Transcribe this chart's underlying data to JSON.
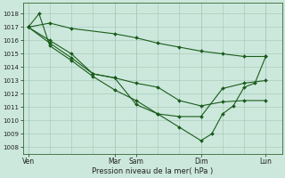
{
  "xlabel": "Pression niveau de la mer( hPa )",
  "background_color": "#cce8dc",
  "grid_color": "#aaccbb",
  "line_color": "#1a5c1a",
  "ylim": [
    1007.5,
    1018.8
  ],
  "yticks": [
    1008,
    1009,
    1010,
    1011,
    1012,
    1013,
    1014,
    1015,
    1016,
    1017,
    1018
  ],
  "xtick_labels": [
    "Ven",
    "Mar",
    "Sam",
    "Dim",
    "Lun"
  ],
  "xtick_positions": [
    0,
    8,
    10,
    16,
    22
  ],
  "xlim": [
    -0.5,
    23.5
  ],
  "line1_x": [
    0,
    2,
    4,
    8,
    10,
    12,
    14,
    16,
    18,
    20,
    22
  ],
  "line1_y": [
    1017.0,
    1017.3,
    1016.9,
    1016.5,
    1016.2,
    1015.8,
    1015.5,
    1015.2,
    1015.0,
    1014.8,
    1014.8
  ],
  "line2_x": [
    0,
    2,
    4,
    6,
    8,
    10,
    12,
    14,
    16,
    18,
    20,
    22
  ],
  "line2_y": [
    1017.0,
    1016.0,
    1015.0,
    1013.5,
    1013.2,
    1012.8,
    1012.5,
    1011.5,
    1011.1,
    1011.4,
    1011.5,
    1011.5
  ],
  "line3_x": [
    0,
    1,
    2,
    4,
    6,
    8,
    10,
    12,
    14,
    16,
    18,
    20,
    22
  ],
  "line3_y": [
    1017.0,
    1018.0,
    1015.6,
    1014.5,
    1013.3,
    1012.3,
    1011.5,
    1010.5,
    1010.3,
    1010.3,
    1012.4,
    1012.8,
    1013.0
  ],
  "line4_x": [
    0,
    2,
    4,
    6,
    8,
    10,
    12,
    14,
    16,
    17,
    18,
    19,
    20,
    21,
    22
  ],
  "line4_y": [
    1017.0,
    1015.8,
    1014.7,
    1013.5,
    1013.2,
    1011.2,
    1010.5,
    1009.5,
    1008.5,
    1009.0,
    1010.5,
    1011.1,
    1012.5,
    1012.8,
    1014.8
  ]
}
